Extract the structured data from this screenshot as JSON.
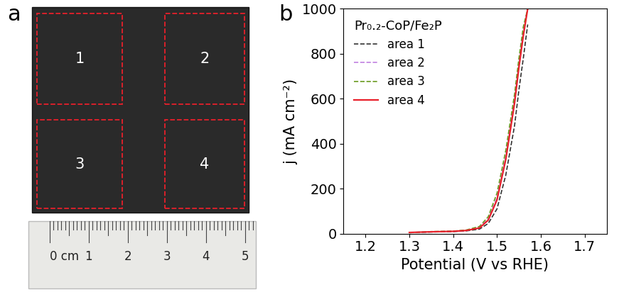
{
  "photo": {
    "panel_label": "a",
    "regions": [
      "1",
      "2",
      "3",
      "4"
    ],
    "ruler_labels": [
      "0 cm",
      "1",
      "2",
      "3",
      "4",
      "5"
    ]
  },
  "chart_data": {
    "type": "line",
    "panel_label": "b",
    "legend_title": "Pr₀.₂-CoP/Fe₂P",
    "x_label": "Potential (V vs RHE)",
    "y_label": "j (mA cm⁻²)",
    "x": [
      1.3,
      1.35,
      1.4,
      1.43,
      1.46,
      1.48,
      1.5,
      1.52,
      1.54,
      1.55,
      1.56,
      1.57
    ],
    "series": [
      {
        "name": "area 1",
        "color": "#333333",
        "line_style": "dashed",
        "values": [
          4,
          7,
          9,
          12,
          20,
          45,
          110,
          260,
          480,
          640,
          780,
          930
        ]
      },
      {
        "name": "area 2",
        "color": "#c080e0",
        "line_style": "dashed",
        "values": [
          5,
          8,
          10,
          14,
          28,
          65,
          160,
          345,
          600,
          760,
          900,
          1000
        ]
      },
      {
        "name": "area 3",
        "color": "#6a9a1f",
        "line_style": "dashed",
        "values": [
          4,
          9,
          11,
          16,
          32,
          75,
          180,
          370,
          620,
          780,
          920,
          1000
        ]
      },
      {
        "name": "area 4",
        "color": "#e8202a",
        "line_style": "solid",
        "values": [
          5,
          8,
          10,
          14,
          25,
          60,
          150,
          330,
          580,
          740,
          880,
          1000
        ]
      }
    ],
    "xlim": [
      1.15,
      1.75
    ],
    "xticks": [
      1.2,
      1.3,
      1.4,
      1.5,
      1.6,
      1.7
    ],
    "ylim": [
      0,
      1000
    ],
    "yticks": [
      0,
      200,
      400,
      600,
      800,
      1000
    ],
    "legend": "upper left"
  }
}
